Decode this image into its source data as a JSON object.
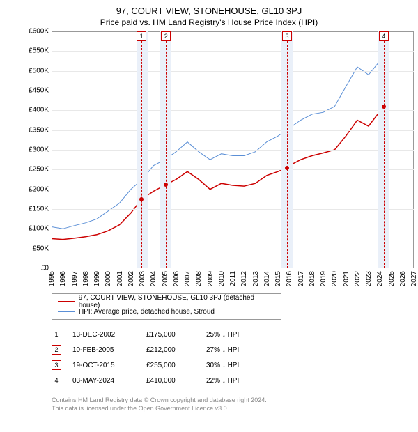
{
  "title": "97, COURT VIEW, STONEHOUSE, GL10 3PJ",
  "subtitle": "Price paid vs. HM Land Registry's House Price Index (HPI)",
  "chart": {
    "type": "line",
    "xlim": [
      1995,
      2027
    ],
    "ylim": [
      0,
      600000
    ],
    "ytick_step": 50000,
    "ylabels": [
      "£0",
      "£50K",
      "£100K",
      "£150K",
      "£200K",
      "£250K",
      "£300K",
      "£350K",
      "£400K",
      "£450K",
      "£500K",
      "£550K",
      "£600K"
    ],
    "xlabels": [
      "1995",
      "1996",
      "1997",
      "1998",
      "1999",
      "2000",
      "2001",
      "2002",
      "2003",
      "2004",
      "2005",
      "2006",
      "2007",
      "2008",
      "2009",
      "2010",
      "2011",
      "2012",
      "2013",
      "2014",
      "2015",
      "2016",
      "2017",
      "2018",
      "2019",
      "2020",
      "2021",
      "2022",
      "2023",
      "2024",
      "2025",
      "2026",
      "2027"
    ],
    "background_color": "#ffffff",
    "grid_color": "#e8e8e8",
    "shaded_color": "#eaf0f9",
    "series": {
      "property": {
        "color": "#cc0000",
        "width": 1.5,
        "label": "97, COURT VIEW, STONEHOUSE, GL10 3PJ (detached house)",
        "points": [
          [
            1995,
            75000
          ],
          [
            1996,
            73000
          ],
          [
            1997,
            76000
          ],
          [
            1998,
            80000
          ],
          [
            1999,
            85000
          ],
          [
            2000,
            95000
          ],
          [
            2001,
            110000
          ],
          [
            2002,
            140000
          ],
          [
            2002.95,
            175000
          ],
          [
            2004,
            195000
          ],
          [
            2005.11,
            212000
          ],
          [
            2006,
            225000
          ],
          [
            2007,
            245000
          ],
          [
            2008,
            225000
          ],
          [
            2009,
            200000
          ],
          [
            2010,
            215000
          ],
          [
            2011,
            210000
          ],
          [
            2012,
            208000
          ],
          [
            2013,
            215000
          ],
          [
            2014,
            235000
          ],
          [
            2015,
            245000
          ],
          [
            2015.8,
            255000
          ],
          [
            2016,
            260000
          ],
          [
            2017,
            275000
          ],
          [
            2018,
            285000
          ],
          [
            2019,
            292000
          ],
          [
            2020,
            300000
          ],
          [
            2021,
            335000
          ],
          [
            2022,
            375000
          ],
          [
            2023,
            360000
          ],
          [
            2024.34,
            410000
          ]
        ]
      },
      "hpi": {
        "color": "#5b8fd6",
        "width": 1,
        "label": "HPI: Average price, detached house, Stroud",
        "points": [
          [
            1995,
            105000
          ],
          [
            1996,
            100000
          ],
          [
            1997,
            108000
          ],
          [
            1998,
            115000
          ],
          [
            1999,
            125000
          ],
          [
            2000,
            145000
          ],
          [
            2001,
            165000
          ],
          [
            2002,
            200000
          ],
          [
            2003,
            225000
          ],
          [
            2004,
            260000
          ],
          [
            2005,
            275000
          ],
          [
            2006,
            295000
          ],
          [
            2007,
            320000
          ],
          [
            2008,
            295000
          ],
          [
            2009,
            275000
          ],
          [
            2010,
            290000
          ],
          [
            2011,
            285000
          ],
          [
            2012,
            285000
          ],
          [
            2013,
            295000
          ],
          [
            2014,
            320000
          ],
          [
            2015,
            335000
          ],
          [
            2016,
            355000
          ],
          [
            2017,
            375000
          ],
          [
            2018,
            390000
          ],
          [
            2019,
            395000
          ],
          [
            2020,
            410000
          ],
          [
            2021,
            460000
          ],
          [
            2022,
            510000
          ],
          [
            2023,
            490000
          ],
          [
            2024,
            525000
          ],
          [
            2024.5,
            540000
          ]
        ]
      }
    },
    "markers": [
      {
        "n": "1",
        "x": 2002.95,
        "shaded_start": 2002.5,
        "shaded_end": 2003.5
      },
      {
        "n": "2",
        "x": 2005.11,
        "shaded_start": 2004.6,
        "shaded_end": 2005.6
      },
      {
        "n": "3",
        "x": 2015.8,
        "shaded_start": 2015.3,
        "shaded_end": 2016.3
      },
      {
        "n": "4",
        "x": 2024.34,
        "shaded_start": 2023.85,
        "shaded_end": 2024.85
      }
    ],
    "sale_dots": [
      [
        2002.95,
        175000
      ],
      [
        2005.11,
        212000
      ],
      [
        2015.8,
        255000
      ],
      [
        2024.34,
        410000
      ]
    ]
  },
  "legend": {
    "items": [
      {
        "color": "#cc0000",
        "label": "97, COURT VIEW, STONEHOUSE, GL10 3PJ (detached house)"
      },
      {
        "color": "#5b8fd6",
        "label": "HPI: Average price, detached house, Stroud"
      }
    ]
  },
  "transactions": [
    {
      "n": "1",
      "date": "13-DEC-2002",
      "price": "£175,000",
      "diff": "25% ↓ HPI"
    },
    {
      "n": "2",
      "date": "10-FEB-2005",
      "price": "£212,000",
      "diff": "27% ↓ HPI"
    },
    {
      "n": "3",
      "date": "19-OCT-2015",
      "price": "£255,000",
      "diff": "30% ↓ HPI"
    },
    {
      "n": "4",
      "date": "03-MAY-2024",
      "price": "£410,000",
      "diff": "22% ↓ HPI"
    }
  ],
  "footer": {
    "line1": "Contains HM Land Registry data © Crown copyright and database right 2024.",
    "line2": "This data is licensed under the Open Government Licence v3.0."
  }
}
